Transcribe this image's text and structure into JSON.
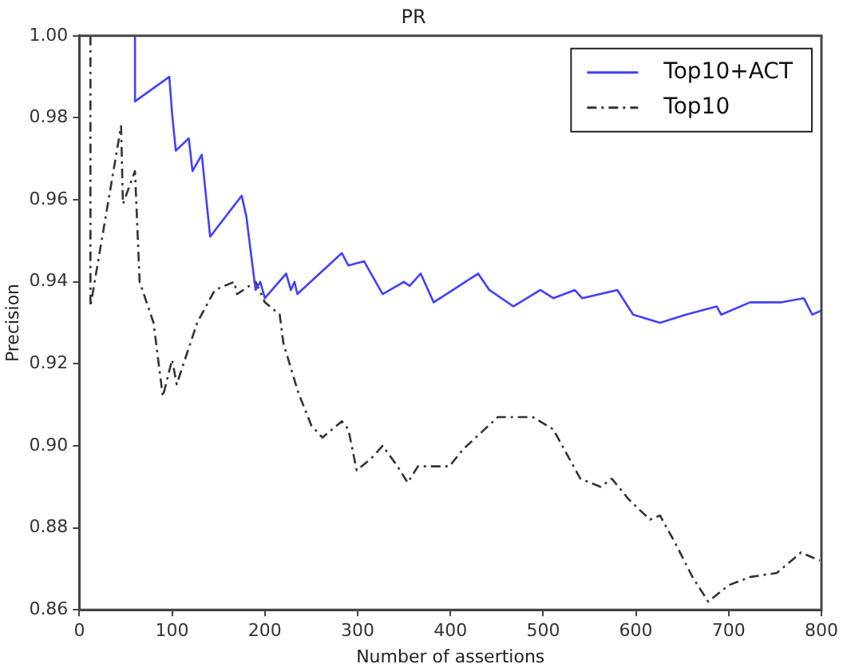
{
  "chart_data": {
    "type": "line",
    "title": "PR",
    "xlabel": "Number of assertions",
    "ylabel": "Precision",
    "xlim": [
      0,
      800
    ],
    "xticks": [
      0,
      100,
      200,
      300,
      400,
      500,
      600,
      700,
      800
    ],
    "ylim": [
      0.86,
      1.0
    ],
    "yticks": [
      0.86,
      0.88,
      {
        "value": 0.9,
        "label": "0.90"
      },
      0.92,
      0.94,
      0.96,
      0.98,
      {
        "value": 1.0,
        "label": "1.00"
      }
    ],
    "grid": false,
    "legend": "top right",
    "marker": "none",
    "series": [
      {
        "name": "Top10+ACT",
        "color": "#4040ff",
        "line_style": "solid",
        "x": [
          60,
          60,
          97,
          100,
          104,
          118,
          122,
          132,
          141,
          175,
          180,
          185,
          190,
          195,
          200,
          223,
          228,
          232,
          235,
          283,
          290,
          307,
          327,
          350,
          356,
          368,
          382,
          430,
          442,
          468,
          497,
          511,
          534,
          542,
          580,
          597,
          626,
          654,
          687,
          692,
          723,
          757,
          781,
          790,
          800
        ],
        "values": [
          1.0,
          0.984,
          0.99,
          0.981,
          0.972,
          0.975,
          0.967,
          0.971,
          0.951,
          0.961,
          0.956,
          0.947,
          0.938,
          0.94,
          0.936,
          0.942,
          0.938,
          0.94,
          0.937,
          0.947,
          0.944,
          0.945,
          0.937,
          0.94,
          0.939,
          0.942,
          0.935,
          0.942,
          0.938,
          0.934,
          0.938,
          0.936,
          0.938,
          0.936,
          0.938,
          0.932,
          0.93,
          0.932,
          0.934,
          0.932,
          0.935,
          0.935,
          0.936,
          0.932,
          0.933
        ]
      },
      {
        "name": "Top10",
        "color": "#333333",
        "line_style": "dashdot",
        "x": [
          12,
          12,
          45,
          47,
          60,
          65,
          80,
          90,
          100,
          105,
          127,
          146,
          167,
          170,
          190,
          200,
          216,
          220,
          236,
          250,
          262,
          283,
          290,
          299,
          315,
          327,
          343,
          354,
          365,
          379,
          399,
          413,
          451,
          489,
          511,
          523,
          540,
          562,
          574,
          592,
          615,
          626,
          643,
          661,
          678,
          700,
          723,
          752,
          778,
          798
        ],
        "values": [
          1.0,
          0.934,
          0.978,
          0.959,
          0.967,
          0.94,
          0.93,
          0.912,
          0.921,
          0.915,
          0.93,
          0.938,
          0.94,
          0.937,
          0.94,
          0.935,
          0.932,
          0.925,
          0.913,
          0.905,
          0.902,
          0.906,
          0.904,
          0.894,
          0.897,
          0.9,
          0.895,
          0.891,
          0.895,
          0.895,
          0.895,
          0.899,
          0.907,
          0.907,
          0.904,
          0.899,
          0.892,
          0.89,
          0.892,
          0.887,
          0.882,
          0.883,
          0.876,
          0.868,
          0.862,
          0.866,
          0.868,
          0.869,
          0.874,
          0.872
        ]
      }
    ]
  }
}
